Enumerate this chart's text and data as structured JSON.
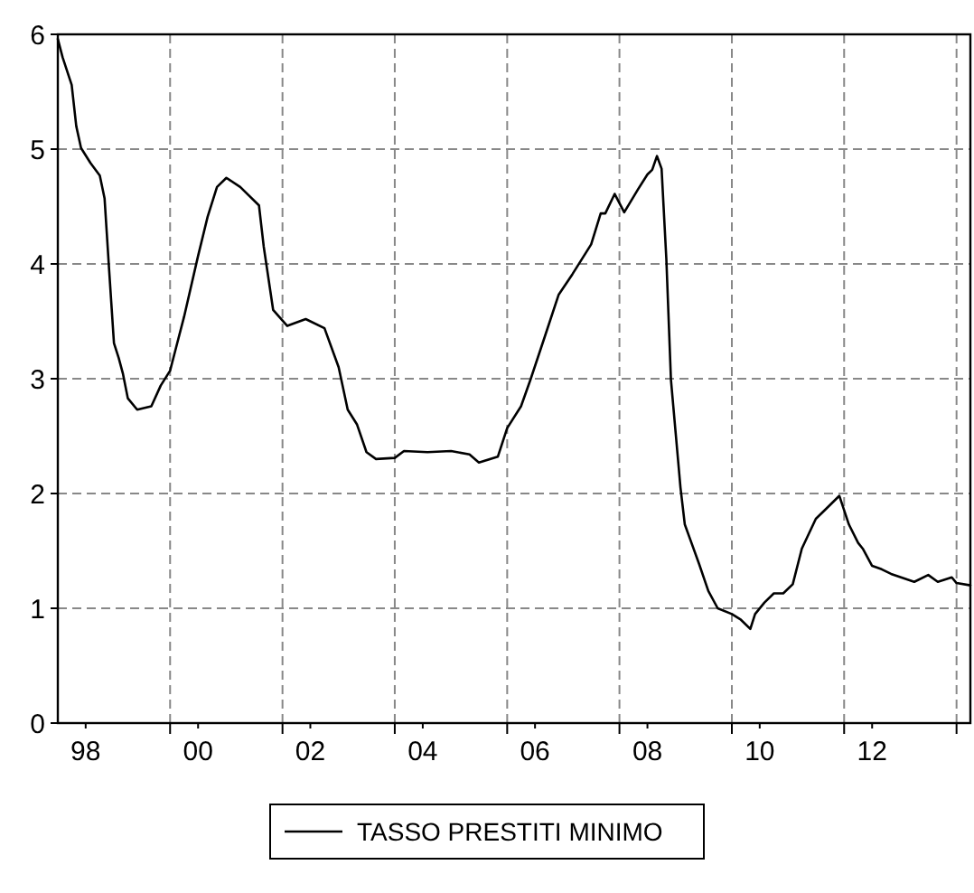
{
  "chart_data": {
    "type": "line",
    "x": [
      "1998-01",
      "1998-02",
      "1998-04",
      "1998-05",
      "1998-06",
      "1998-08",
      "1998-10",
      "1998-11",
      "1998-12",
      "1999-01",
      "1999-02",
      "1999-03",
      "1999-04",
      "1999-06",
      "1999-09",
      "1999-11",
      "2000-01",
      "2000-02",
      "2000-04",
      "2000-07",
      "2000-09",
      "2000-11",
      "2001-01",
      "2001-04",
      "2001-08",
      "2001-09",
      "2001-11",
      "2002-02",
      "2002-06",
      "2002-10",
      "2003-01",
      "2003-03",
      "2003-05",
      "2003-07",
      "2003-09",
      "2004-01",
      "2004-03",
      "2004-08",
      "2005-01",
      "2005-05",
      "2005-07",
      "2005-11",
      "2006-01",
      "2006-04",
      "2006-06",
      "2006-09",
      "2006-12",
      "2007-03",
      "2007-07",
      "2007-09",
      "2007-10",
      "2007-12",
      "2008-02",
      "2008-05",
      "2008-07",
      "2008-08",
      "2008-09",
      "2008-10",
      "2008-11",
      "2008-12",
      "2009-02",
      "2009-03",
      "2009-06",
      "2009-08",
      "2009-10",
      "2010-01",
      "2010-03",
      "2010-05",
      "2010-06",
      "2010-08",
      "2010-10",
      "2010-12",
      "2011-02",
      "2011-04",
      "2011-07",
      "2011-09",
      "2011-12",
      "2012-02",
      "2012-04",
      "2012-05",
      "2012-07",
      "2012-09",
      "2012-11",
      "2013-04",
      "2013-07",
      "2013-09",
      "2013-12",
      "2014-01",
      "2014-04"
    ],
    "series": [
      {
        "name": "TASSO PRESTITI MINIMO",
        "color": "#000000",
        "values": [
          5.96,
          5.8,
          5.56,
          5.2,
          5.01,
          4.88,
          4.77,
          4.57,
          3.94,
          3.31,
          3.18,
          3.04,
          2.83,
          2.73,
          2.76,
          2.94,
          3.07,
          3.23,
          3.54,
          4.07,
          4.41,
          4.67,
          4.75,
          4.67,
          4.51,
          4.15,
          3.6,
          3.46,
          3.52,
          3.44,
          3.1,
          2.73,
          2.6,
          2.36,
          2.3,
          2.31,
          2.37,
          2.36,
          2.37,
          2.34,
          2.27,
          2.32,
          2.57,
          2.76,
          2.99,
          3.36,
          3.73,
          3.91,
          4.17,
          4.44,
          4.44,
          4.61,
          4.45,
          4.65,
          4.78,
          4.82,
          4.94,
          4.83,
          4.04,
          2.99,
          2.05,
          1.73,
          1.39,
          1.15,
          1.0,
          0.95,
          0.9,
          0.82,
          0.95,
          1.05,
          1.13,
          1.13,
          1.21,
          1.52,
          1.78,
          1.86,
          1.98,
          1.73,
          1.57,
          1.52,
          1.37,
          1.34,
          1.3,
          1.23,
          1.29,
          1.23,
          1.27,
          1.22,
          1.2
        ]
      }
    ],
    "xlim": [
      "1998-01",
      "2014-04"
    ],
    "xticks": [
      {
        "value": "1998-07",
        "label": "98"
      },
      {
        "value": "2000-07",
        "label": "00"
      },
      {
        "value": "2002-07",
        "label": "02"
      },
      {
        "value": "2004-07",
        "label": "04"
      },
      {
        "value": "2006-07",
        "label": "06"
      },
      {
        "value": "2008-07",
        "label": "08"
      },
      {
        "value": "2010-07",
        "label": "10"
      },
      {
        "value": "2012-07",
        "label": "12"
      },
      {
        "value": "2000-01",
        "label": null
      },
      {
        "value": "2002-01",
        "label": null
      },
      {
        "value": "2004-01",
        "label": null
      },
      {
        "value": "2006-01",
        "label": null
      },
      {
        "value": "2008-01",
        "label": null
      },
      {
        "value": "2010-01",
        "label": null
      },
      {
        "value": "2012-01",
        "label": null
      },
      {
        "value": "2014-01",
        "label": null
      }
    ],
    "ylim": [
      0,
      6
    ],
    "yticks": [
      0,
      1,
      2,
      3,
      4,
      5,
      6
    ],
    "grid": true,
    "legend": "bottom",
    "line_style": "solid",
    "marker": "none"
  }
}
